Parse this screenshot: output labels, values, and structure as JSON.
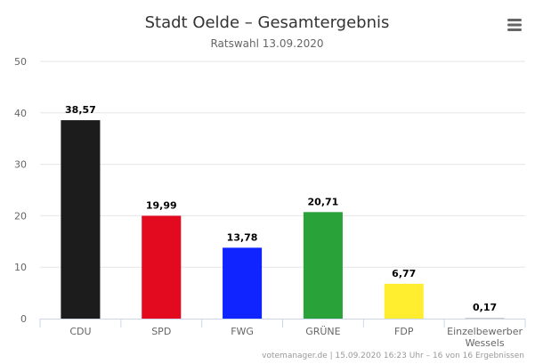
{
  "chart_data": {
    "type": "bar",
    "title": "Stadt Oelde – Gesamtergebnis",
    "subtitle": "Ratswahl 13.09.2020",
    "categories": [
      "CDU",
      "SPD",
      "FWG",
      "GRÜNE",
      "FDP",
      "Einzelbewerber Wessels"
    ],
    "category_lines": [
      [
        "CDU"
      ],
      [
        "SPD"
      ],
      [
        "FWG"
      ],
      [
        "GRÜNE"
      ],
      [
        "FDP"
      ],
      [
        "Einzelbewerber",
        "Wessels"
      ]
    ],
    "values": [
      38.57,
      19.99,
      13.78,
      20.71,
      6.77,
      0.17
    ],
    "value_labels": [
      "38,57",
      "19,99",
      "13,78",
      "20,71",
      "6,77",
      "0,17"
    ],
    "colors": [
      "#1c1c1c",
      "#e30a20",
      "#0f24ff",
      "#2aa23a",
      "#ffed2f",
      "#cccccc"
    ],
    "ylim": [
      0,
      50
    ],
    "yticks": [
      0,
      10,
      20,
      30,
      40,
      50
    ],
    "xlabel": "",
    "ylabel": "",
    "grid": true,
    "legend": false
  },
  "credits": "votemanager.de | 15.09.2020 16:23 Uhr – 16 von 16 Ergebnissen",
  "menu_icon": "hamburger-menu-icon"
}
